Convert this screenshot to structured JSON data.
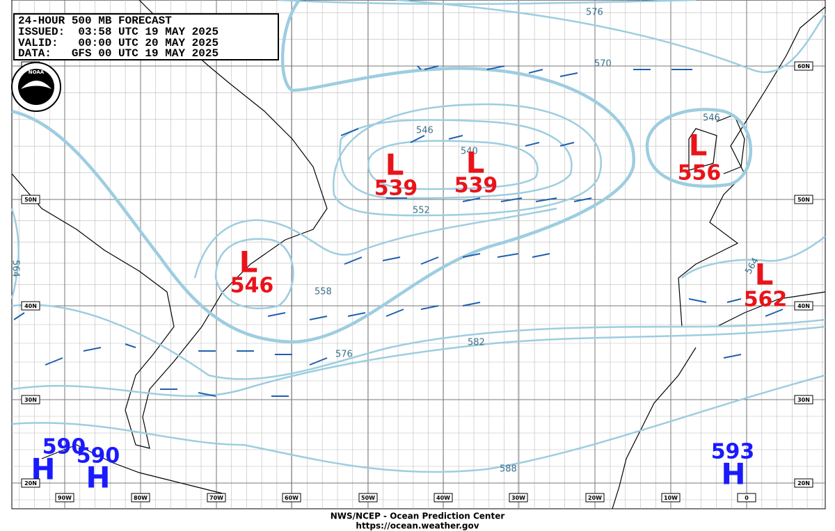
{
  "header": {
    "lines": [
      "24-HOUR 500 MB FORECAST",
      "ISSUED:  03:58 UTC 19 MAY 2025",
      "VALID:   00:00 UTC 20 MAY 2025",
      "DATA:   GFS 00 UTC 19 MAY 2025"
    ],
    "logo": "NOAA"
  },
  "centers": [
    {
      "label": "L",
      "value": 539
    },
    {
      "label": "L",
      "value": 539
    },
    {
      "label": "L",
      "value": 556
    },
    {
      "label": "L",
      "value": 546
    },
    {
      "label": "L",
      "value": 562
    },
    {
      "label": "H",
      "value": 590
    },
    {
      "label": "H",
      "value": 590
    },
    {
      "label": "H",
      "value": 593
    }
  ],
  "contour_labels": [
    576,
    570,
    546,
    540,
    552,
    558,
    576,
    582,
    588,
    564,
    564,
    546
  ],
  "lat_labels": [
    "60N",
    "50N",
    "40N",
    "30N",
    "20N"
  ],
  "lon_labels": [
    "90W",
    "80W",
    "70W",
    "60W",
    "50W",
    "40W",
    "30W",
    "20W",
    "10W",
    "0"
  ],
  "footer": {
    "org": "NWS/NCEP - Ocean Prediction Center",
    "url": "https://ocean.weather.gov"
  }
}
